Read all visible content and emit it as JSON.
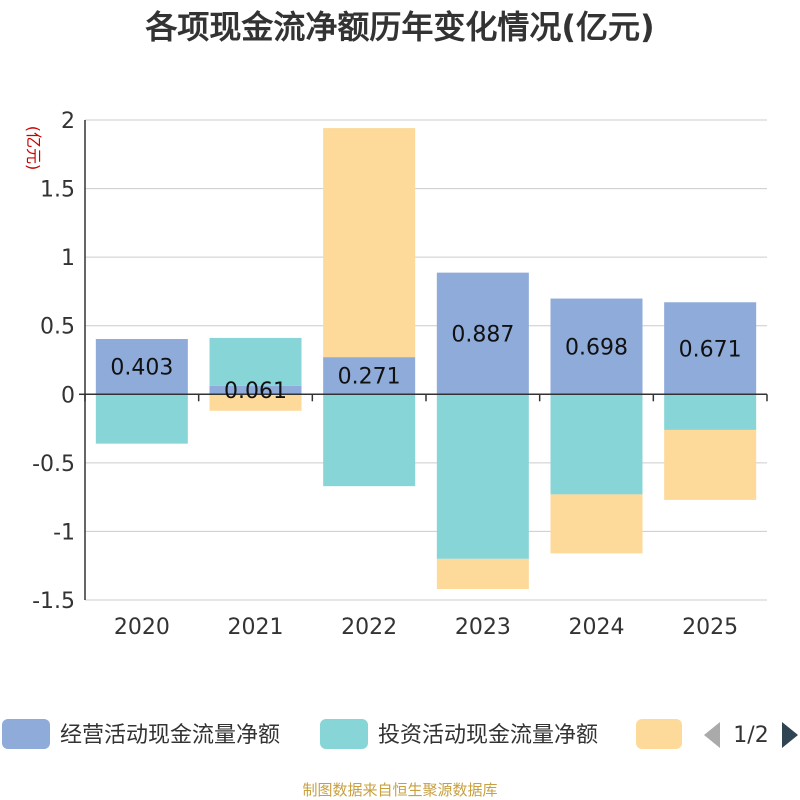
{
  "chart_data": {
    "type": "bar",
    "stacked": true,
    "title": "各项现金流净额历年变化情况(亿元)",
    "unit_label": "(亿元)",
    "categories": [
      "2020",
      "2021",
      "2022",
      "2023",
      "2024",
      "2025"
    ],
    "ylim": [
      -1.5,
      2
    ],
    "yticks": [
      2,
      1.5,
      1,
      0.5,
      0,
      -0.5,
      -1,
      -1.5
    ],
    "ytick_labels": [
      "2",
      "1.5",
      "1",
      "0.5",
      "0",
      "-0.5",
      "-1",
      "-1.5"
    ],
    "grid": true,
    "series": [
      {
        "name": "经营活动现金流量净额",
        "color": "#8eabd9",
        "values": [
          0.403,
          0.061,
          0.271,
          0.887,
          0.698,
          0.671
        ],
        "labels": [
          "0.403",
          "0.061",
          "0.271",
          "0.887",
          "0.698",
          "0.671"
        ]
      },
      {
        "name": "投资活动现金流量净额",
        "color": "#88d5d8",
        "values": [
          -0.36,
          0.35,
          -0.67,
          -1.2,
          -0.73,
          -0.26
        ]
      },
      {
        "name": "",
        "color": "#fdd99a",
        "values": [
          0,
          -0.12,
          1.67,
          -0.22,
          -0.43,
          -0.51
        ]
      }
    ],
    "legend": {
      "position": "bottom",
      "page": "1/2"
    }
  },
  "footer": "制图数据来自恒生聚源数据库"
}
